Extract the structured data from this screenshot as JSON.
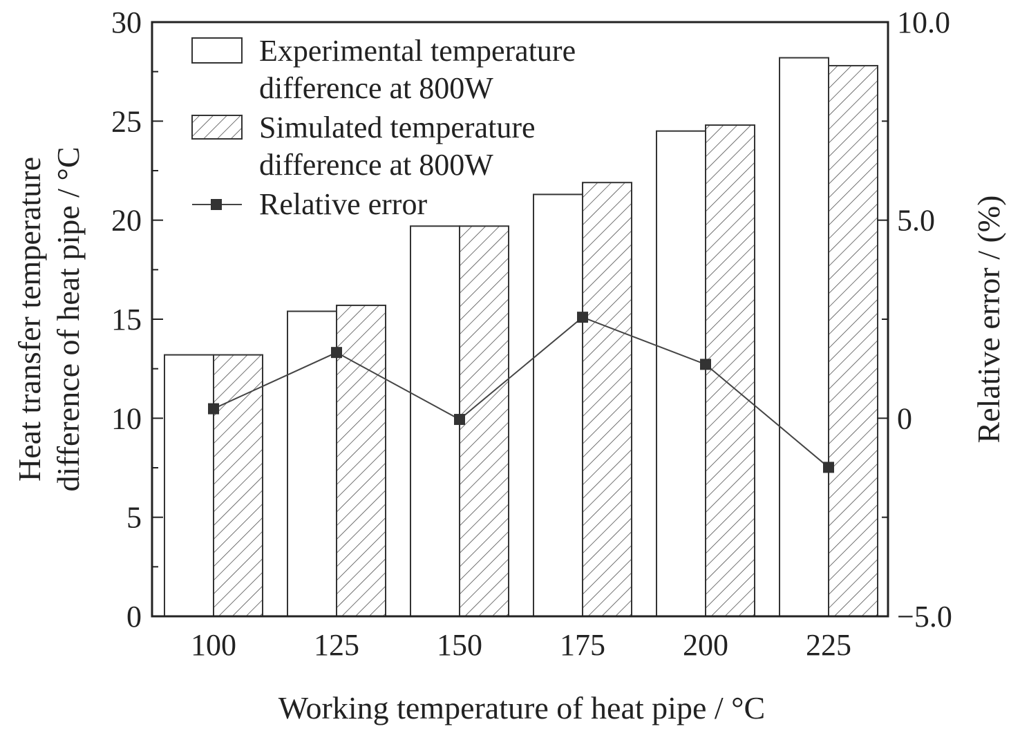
{
  "chart_data": {
    "type": "bar",
    "categories": [
      "100",
      "125",
      "150",
      "175",
      "200",
      "225"
    ],
    "series": [
      {
        "name": "Experimental temperature difference at 800W",
        "axis": "left",
        "kind": "bar",
        "pattern": "none",
        "values": [
          13.2,
          15.4,
          19.7,
          21.3,
          24.5,
          28.2
        ]
      },
      {
        "name": "Simulated temperature difference at 800W",
        "axis": "left",
        "kind": "bar",
        "pattern": "hatch",
        "values": [
          13.2,
          15.7,
          19.7,
          21.9,
          24.8,
          27.8
        ]
      },
      {
        "name": "Relative error",
        "axis": "right",
        "kind": "line",
        "marker": "square",
        "values": [
          0.24,
          1.66,
          -0.03,
          2.55,
          1.36,
          -1.24
        ]
      }
    ],
    "legend_lines": [
      [
        "Experimental temperature",
        "difference at 800W"
      ],
      [
        "Simulated temperature",
        "difference at 800W"
      ],
      [
        "Relative error"
      ]
    ],
    "xlabel": "Working temperature of heat pipe / °C",
    "ylabel_lines": [
      "Heat transfer temperature",
      "difference of heat pipe / °C"
    ],
    "y2label": "Relative error / (%)",
    "ylim": [
      0,
      30
    ],
    "y2lim": [
      -5,
      10
    ],
    "yticks": [
      "0",
      "5",
      "10",
      "15",
      "20",
      "25",
      "30"
    ],
    "y2ticks": [
      "−5.0",
      "0",
      "5.0",
      "10.0"
    ],
    "legend_position": "top-left",
    "grid": false,
    "colors": {
      "axis": "#222222",
      "bar_edge": "#333333",
      "line": "#444444",
      "marker": "#333333"
    }
  }
}
